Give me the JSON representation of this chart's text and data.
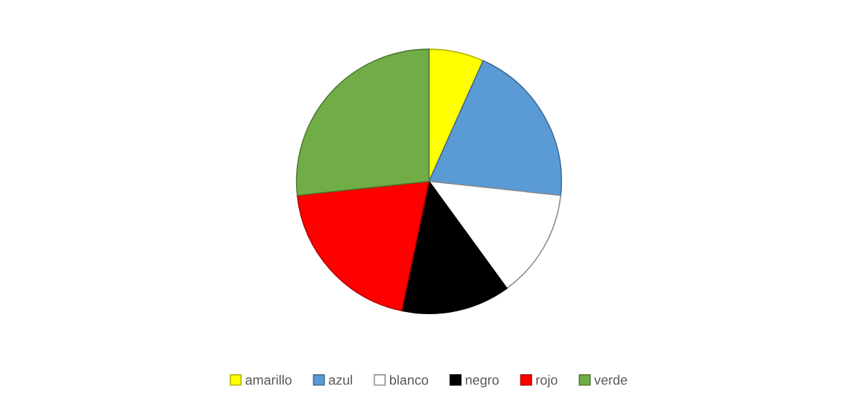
{
  "chart_data": {
    "type": "pie",
    "categories": [
      "amarillo",
      "azul",
      "blanco",
      "negro",
      "rojo",
      "verde"
    ],
    "values": [
      6.7,
      20,
      13.3,
      13.3,
      20,
      26.7
    ],
    "colors": [
      "#ffff00",
      "#5b9bd5",
      "#ffffff",
      "#000000",
      "#ff0000",
      "#70ad47"
    ],
    "legend": "bottom"
  }
}
